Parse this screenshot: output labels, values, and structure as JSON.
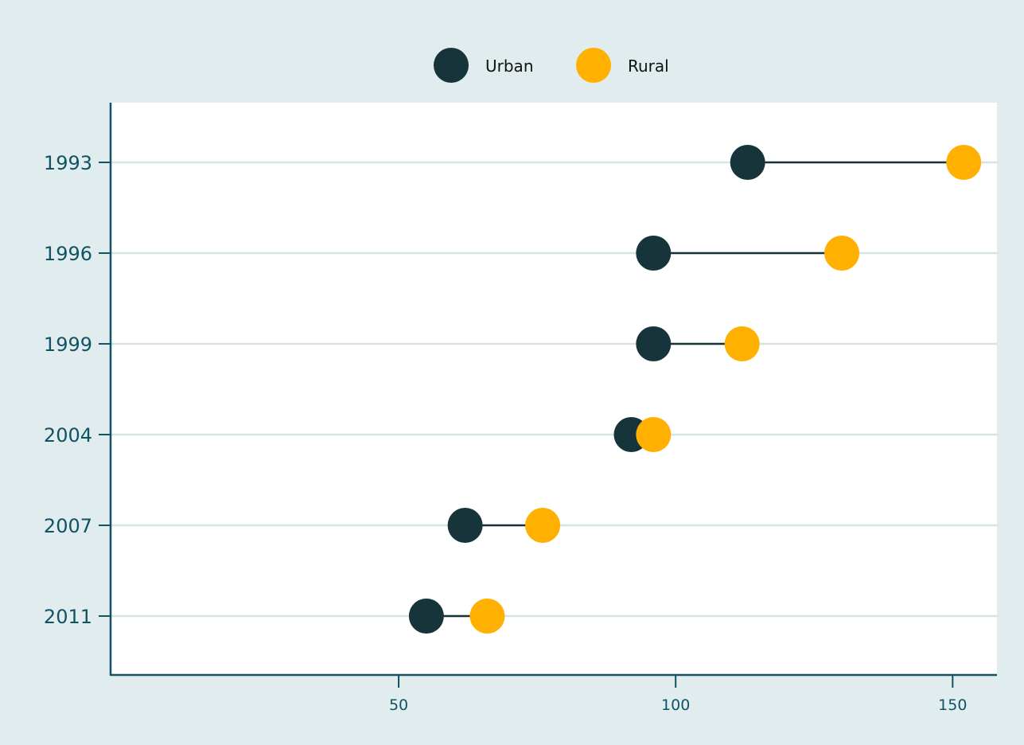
{
  "chart_data": {
    "type": "dumbbell",
    "title": "",
    "xlabel": "",
    "ylabel": "",
    "categories": [
      "1993",
      "1996",
      "1999",
      "2004",
      "2007",
      "2011"
    ],
    "series": [
      {
        "name": "Urban",
        "color": "#17343b",
        "values": [
          113,
          96,
          96,
          92,
          62,
          55
        ]
      },
      {
        "name": "Rural",
        "color": "#ffb000",
        "values": [
          152,
          130,
          112,
          96,
          76,
          66
        ]
      }
    ],
    "xlim": [
      -2,
      158
    ],
    "xticks": [
      "50",
      "100",
      "150"
    ],
    "xtick_values": [
      50,
      100,
      150
    ],
    "grid": true,
    "legend": {
      "position": "top",
      "items": [
        "Urban",
        "Rural"
      ]
    },
    "colors": {
      "background": "#e1ecee",
      "plot_background": "#ffffff",
      "axis": "#0f5364",
      "gridline": "#d8e3e6",
      "connector": "#17343b"
    }
  }
}
